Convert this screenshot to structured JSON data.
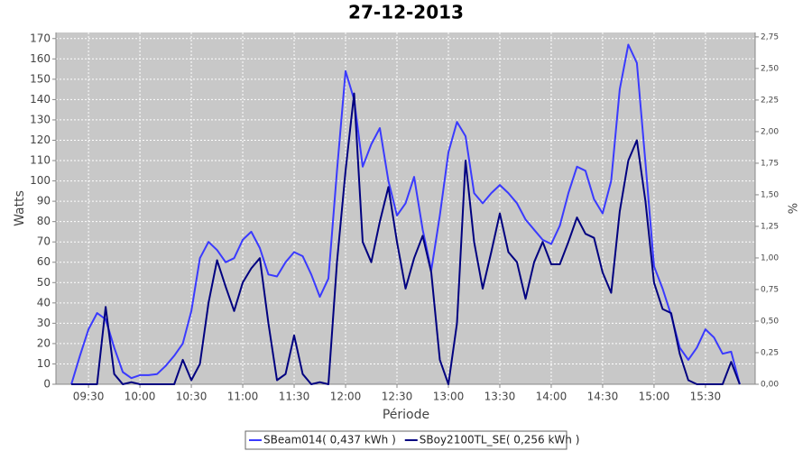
{
  "chart_data": {
    "type": "line",
    "title": "27-12-2013",
    "xlabel": "Période",
    "ylabel": "Watts",
    "y2label": "%",
    "x": [
      "09:20",
      "09:25",
      "09:30",
      "09:35",
      "09:40",
      "09:45",
      "09:50",
      "09:55",
      "10:00",
      "10:05",
      "10:10",
      "10:15",
      "10:20",
      "10:25",
      "10:30",
      "10:35",
      "10:40",
      "10:45",
      "10:50",
      "10:55",
      "11:00",
      "11:05",
      "11:10",
      "11:15",
      "11:20",
      "11:25",
      "11:30",
      "11:35",
      "11:40",
      "11:45",
      "11:50",
      "11:55",
      "12:00",
      "12:05",
      "12:10",
      "12:15",
      "12:20",
      "12:25",
      "12:30",
      "12:35",
      "12:40",
      "12:45",
      "12:50",
      "12:55",
      "13:00",
      "13:05",
      "13:10",
      "13:15",
      "13:20",
      "13:25",
      "13:30",
      "13:35",
      "13:40",
      "13:45",
      "13:50",
      "13:55",
      "14:00",
      "14:05",
      "14:10",
      "14:15",
      "14:20",
      "14:25",
      "14:30",
      "14:35",
      "14:40",
      "14:45",
      "14:50",
      "14:55",
      "15:00",
      "15:05",
      "15:10",
      "15:15",
      "15:20",
      "15:25",
      "15:30",
      "15:35",
      "15:40",
      "15:45",
      "15:50"
    ],
    "series": [
      {
        "name": "SBeam014( 0,437 kWh )",
        "color": "#3a3aff",
        "values": [
          0,
          14,
          27,
          35,
          32,
          18,
          6,
          3,
          4.5,
          4.5,
          5,
          9,
          14,
          20,
          36,
          62,
          70,
          66,
          60,
          62,
          71,
          75,
          67,
          54,
          53,
          60,
          65,
          63,
          54,
          43,
          52,
          105,
          154,
          140,
          107,
          118,
          126,
          100,
          83,
          89,
          102,
          76,
          56,
          83,
          114,
          129,
          122,
          94,
          89,
          94,
          98,
          94,
          89,
          81,
          76,
          71,
          69,
          78,
          94,
          107,
          105,
          91,
          84,
          100,
          145,
          167,
          158,
          109,
          58,
          47,
          34,
          18,
          12,
          18,
          27,
          23,
          15,
          16,
          0
        ]
      },
      {
        "name": "SBoy2100TL_SE( 0,256 kWh )",
        "color": "#000080",
        "values": [
          0,
          0,
          0,
          0,
          38,
          5,
          0,
          1,
          0,
          0,
          0,
          0,
          0,
          12,
          2,
          10,
          40,
          61,
          48,
          36,
          50,
          57,
          62,
          30,
          2,
          5,
          24,
          5,
          0,
          1,
          0,
          60,
          105,
          143,
          70,
          60,
          80,
          97,
          70,
          47,
          62,
          73,
          55,
          12,
          0,
          30,
          110,
          70,
          47,
          65,
          84,
          65,
          60,
          42,
          60,
          70,
          59,
          59,
          70,
          82,
          74,
          72,
          55,
          45,
          85,
          110,
          120,
          90,
          50,
          37,
          35,
          15,
          2,
          0,
          0,
          0,
          0,
          11,
          0
        ]
      }
    ],
    "xlim": [
      "09:11",
      "15:59"
    ],
    "xticks": [
      "09:30",
      "10:00",
      "10:30",
      "11:00",
      "11:30",
      "12:00",
      "12:30",
      "13:00",
      "13:30",
      "14:00",
      "14:30",
      "15:00",
      "15:30"
    ],
    "ylim": [
      0,
      173
    ],
    "yticks": [
      0,
      10,
      20,
      30,
      40,
      50,
      60,
      70,
      80,
      90,
      100,
      110,
      120,
      130,
      140,
      150,
      160,
      170
    ],
    "y2lim": [
      0,
      2.785
    ],
    "y2ticks": [
      {
        "value": 0,
        "label": "0,00"
      },
      {
        "value": 0.25,
        "label": "0,25"
      },
      {
        "value": 0.5,
        "label": "0,50"
      },
      {
        "value": 0.75,
        "label": "0,75"
      },
      {
        "value": 1,
        "label": "1,00"
      },
      {
        "value": 1.25,
        "label": "1,25"
      },
      {
        "value": 1.5,
        "label": "1,50"
      },
      {
        "value": 1.75,
        "label": "1,75"
      },
      {
        "value": 2,
        "label": "2,00"
      },
      {
        "value": 2.25,
        "label": "2,25"
      },
      {
        "value": 2.5,
        "label": "2,50"
      },
      {
        "value": 2.75,
        "label": "2,75"
      }
    ],
    "grid": true,
    "legend": "bottom"
  }
}
